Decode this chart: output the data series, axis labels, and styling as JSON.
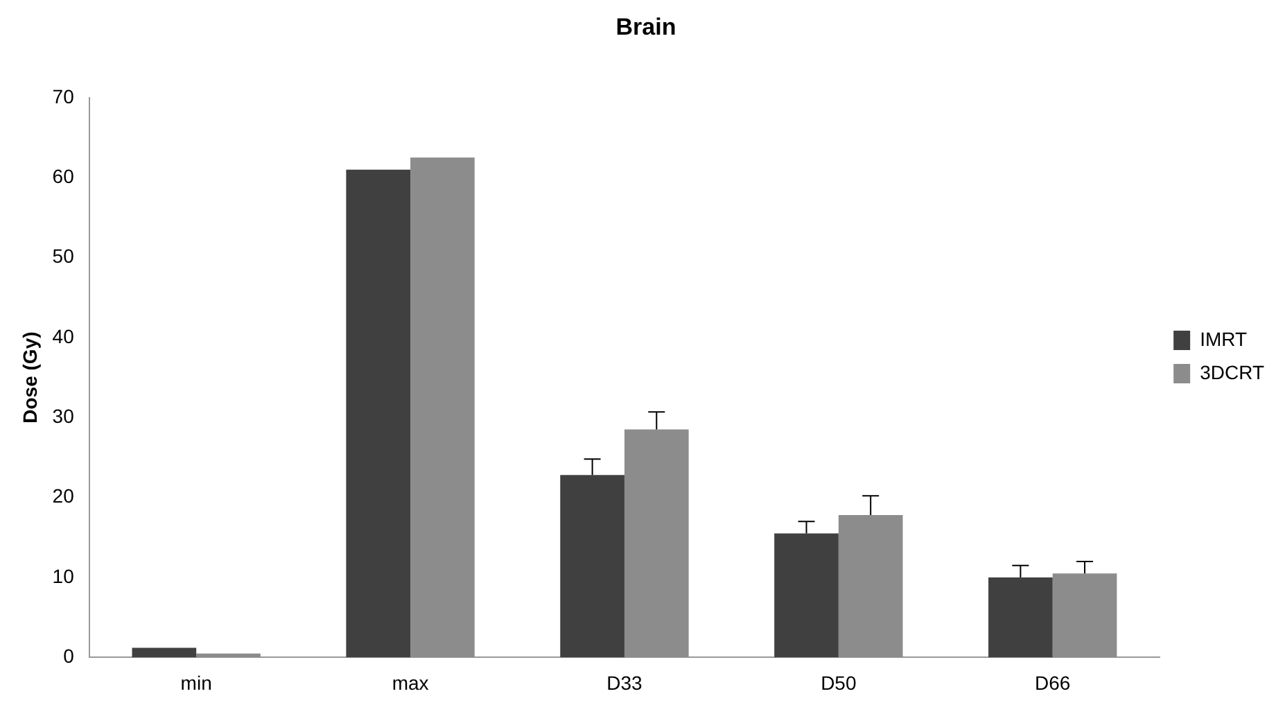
{
  "chart_data": {
    "type": "bar",
    "title": "Brain",
    "ylabel": "Dose (Gy)",
    "categories": [
      "min",
      "max",
      "D33",
      "D50",
      "D66"
    ],
    "series": [
      {
        "name": "IMRT",
        "color": "#404040",
        "values": [
          1.2,
          61,
          22.8,
          15.5,
          10
        ],
        "errors": [
          null,
          null,
          [
            22.8,
            24.8
          ],
          [
            15.5,
            17
          ],
          [
            10,
            11.5
          ]
        ]
      },
      {
        "name": "3DCRT",
        "color": "#8c8c8c",
        "values": [
          0.5,
          62.5,
          28.5,
          17.8,
          10.5
        ],
        "errors": [
          null,
          null,
          [
            28.5,
            30.7
          ],
          [
            17.8,
            20.2
          ],
          [
            10.5,
            12
          ]
        ]
      }
    ],
    "ylim": [
      0,
      70
    ],
    "yticks": [
      0,
      10,
      20,
      30,
      40,
      50,
      60,
      70
    ],
    "grid": false,
    "legend": "right"
  }
}
